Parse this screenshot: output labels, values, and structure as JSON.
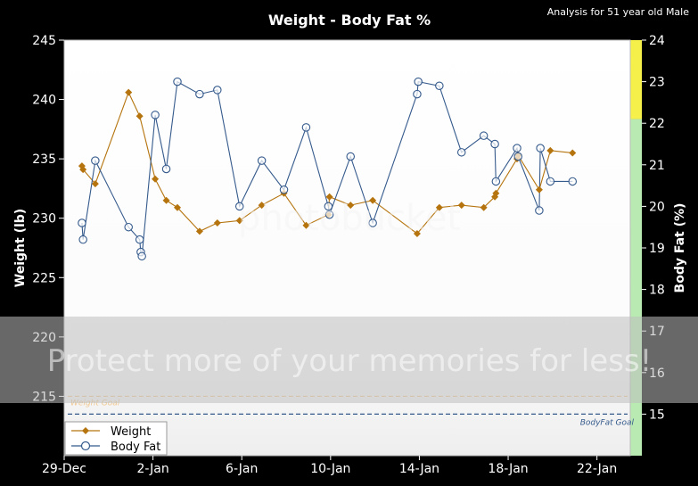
{
  "chart_data": {
    "type": "line",
    "title": "Weight - Body Fat %",
    "subtitle": "Analysis for 51 year old Male",
    "ylabel_left": "Weight (lb)",
    "ylabel_right": "Body Fat (%)",
    "x_ticks": [
      "29-Dec",
      "2-Jan",
      "6-Jan",
      "10-Jan",
      "14-Jan",
      "18-Jan",
      "22-Jan"
    ],
    "x_tick_days": [
      0,
      4,
      8,
      12,
      16,
      20,
      24
    ],
    "xlim": [
      0,
      25.5
    ],
    "ylim_left": [
      210,
      245
    ],
    "yticks_left": [
      215,
      220,
      225,
      230,
      235,
      240,
      245
    ],
    "ylim_right": [
      14,
      24
    ],
    "yticks_right": [
      15,
      16,
      17,
      18,
      19,
      20,
      21,
      22,
      23,
      24
    ],
    "right_bands": [
      {
        "from": 22.1,
        "to": 24,
        "color": "#f6f04a"
      },
      {
        "from": 14,
        "to": 22.1,
        "color": "#b8eab2"
      }
    ],
    "goals": [
      {
        "label": "Weight Goal",
        "axis": "left",
        "value": 215,
        "color": "#f0c890"
      },
      {
        "label": "BodyFat Goal",
        "axis": "right",
        "value": 15,
        "color": "#355a8c"
      }
    ],
    "series": [
      {
        "name": "Weight",
        "axis": "left",
        "color": "#b5740e",
        "marker": "diamond",
        "points": [
          [
            0.8,
            234.4
          ],
          [
            0.85,
            234.1
          ],
          [
            1.4,
            232.9
          ],
          [
            2.9,
            240.6
          ],
          [
            3.4,
            238.6
          ],
          [
            4.1,
            233.3
          ],
          [
            4.6,
            231.5
          ],
          [
            5.1,
            230.9
          ],
          [
            6.1,
            228.9
          ],
          [
            6.9,
            229.6
          ],
          [
            7.9,
            229.8
          ],
          [
            8.9,
            231.1
          ],
          [
            9.9,
            232.1
          ],
          [
            10.9,
            229.4
          ],
          [
            11.9,
            230.3
          ],
          [
            11.95,
            231.8
          ],
          [
            12.9,
            231.1
          ],
          [
            13.9,
            231.5
          ],
          [
            15.9,
            228.7
          ],
          [
            16.9,
            230.9
          ],
          [
            17.9,
            231.1
          ],
          [
            18.9,
            230.9
          ],
          [
            19.4,
            231.8
          ],
          [
            19.45,
            232.1
          ],
          [
            20.4,
            235.0
          ],
          [
            20.45,
            235.3
          ],
          [
            21.4,
            232.4
          ],
          [
            21.9,
            235.7
          ],
          [
            22.9,
            235.5
          ]
        ]
      },
      {
        "name": "Body Fat",
        "axis": "right",
        "color": "#355a8c",
        "marker": "circle",
        "points": [
          [
            0.8,
            19.6
          ],
          [
            0.85,
            19.2
          ],
          [
            1.4,
            21.1
          ],
          [
            2.9,
            19.5
          ],
          [
            3.4,
            19.2
          ],
          [
            3.45,
            18.9
          ],
          [
            3.5,
            18.8
          ],
          [
            4.1,
            22.2
          ],
          [
            4.6,
            20.9
          ],
          [
            5.1,
            23.0
          ],
          [
            6.1,
            22.7
          ],
          [
            6.9,
            22.8
          ],
          [
            7.9,
            20.0
          ],
          [
            8.9,
            21.1
          ],
          [
            9.9,
            20.4
          ],
          [
            10.9,
            21.9
          ],
          [
            11.9,
            20.0
          ],
          [
            11.95,
            19.8
          ],
          [
            12.9,
            21.2
          ],
          [
            13.9,
            19.6
          ],
          [
            15.9,
            22.7
          ],
          [
            15.95,
            23.0
          ],
          [
            16.9,
            22.9
          ],
          [
            17.9,
            21.3
          ],
          [
            18.9,
            21.7
          ],
          [
            19.4,
            21.5
          ],
          [
            19.45,
            20.6
          ],
          [
            20.4,
            21.4
          ],
          [
            20.45,
            21.2
          ],
          [
            21.4,
            19.9
          ],
          [
            21.45,
            21.4
          ],
          [
            21.9,
            20.6
          ],
          [
            22.9,
            20.6
          ]
        ]
      }
    ],
    "legend": {
      "position": "bottom-left",
      "entries": [
        "Weight",
        "Body Fat"
      ]
    }
  },
  "watermark": {
    "text_main": "Protect more of your memories for less!",
    "text_bg": "photobucket"
  }
}
